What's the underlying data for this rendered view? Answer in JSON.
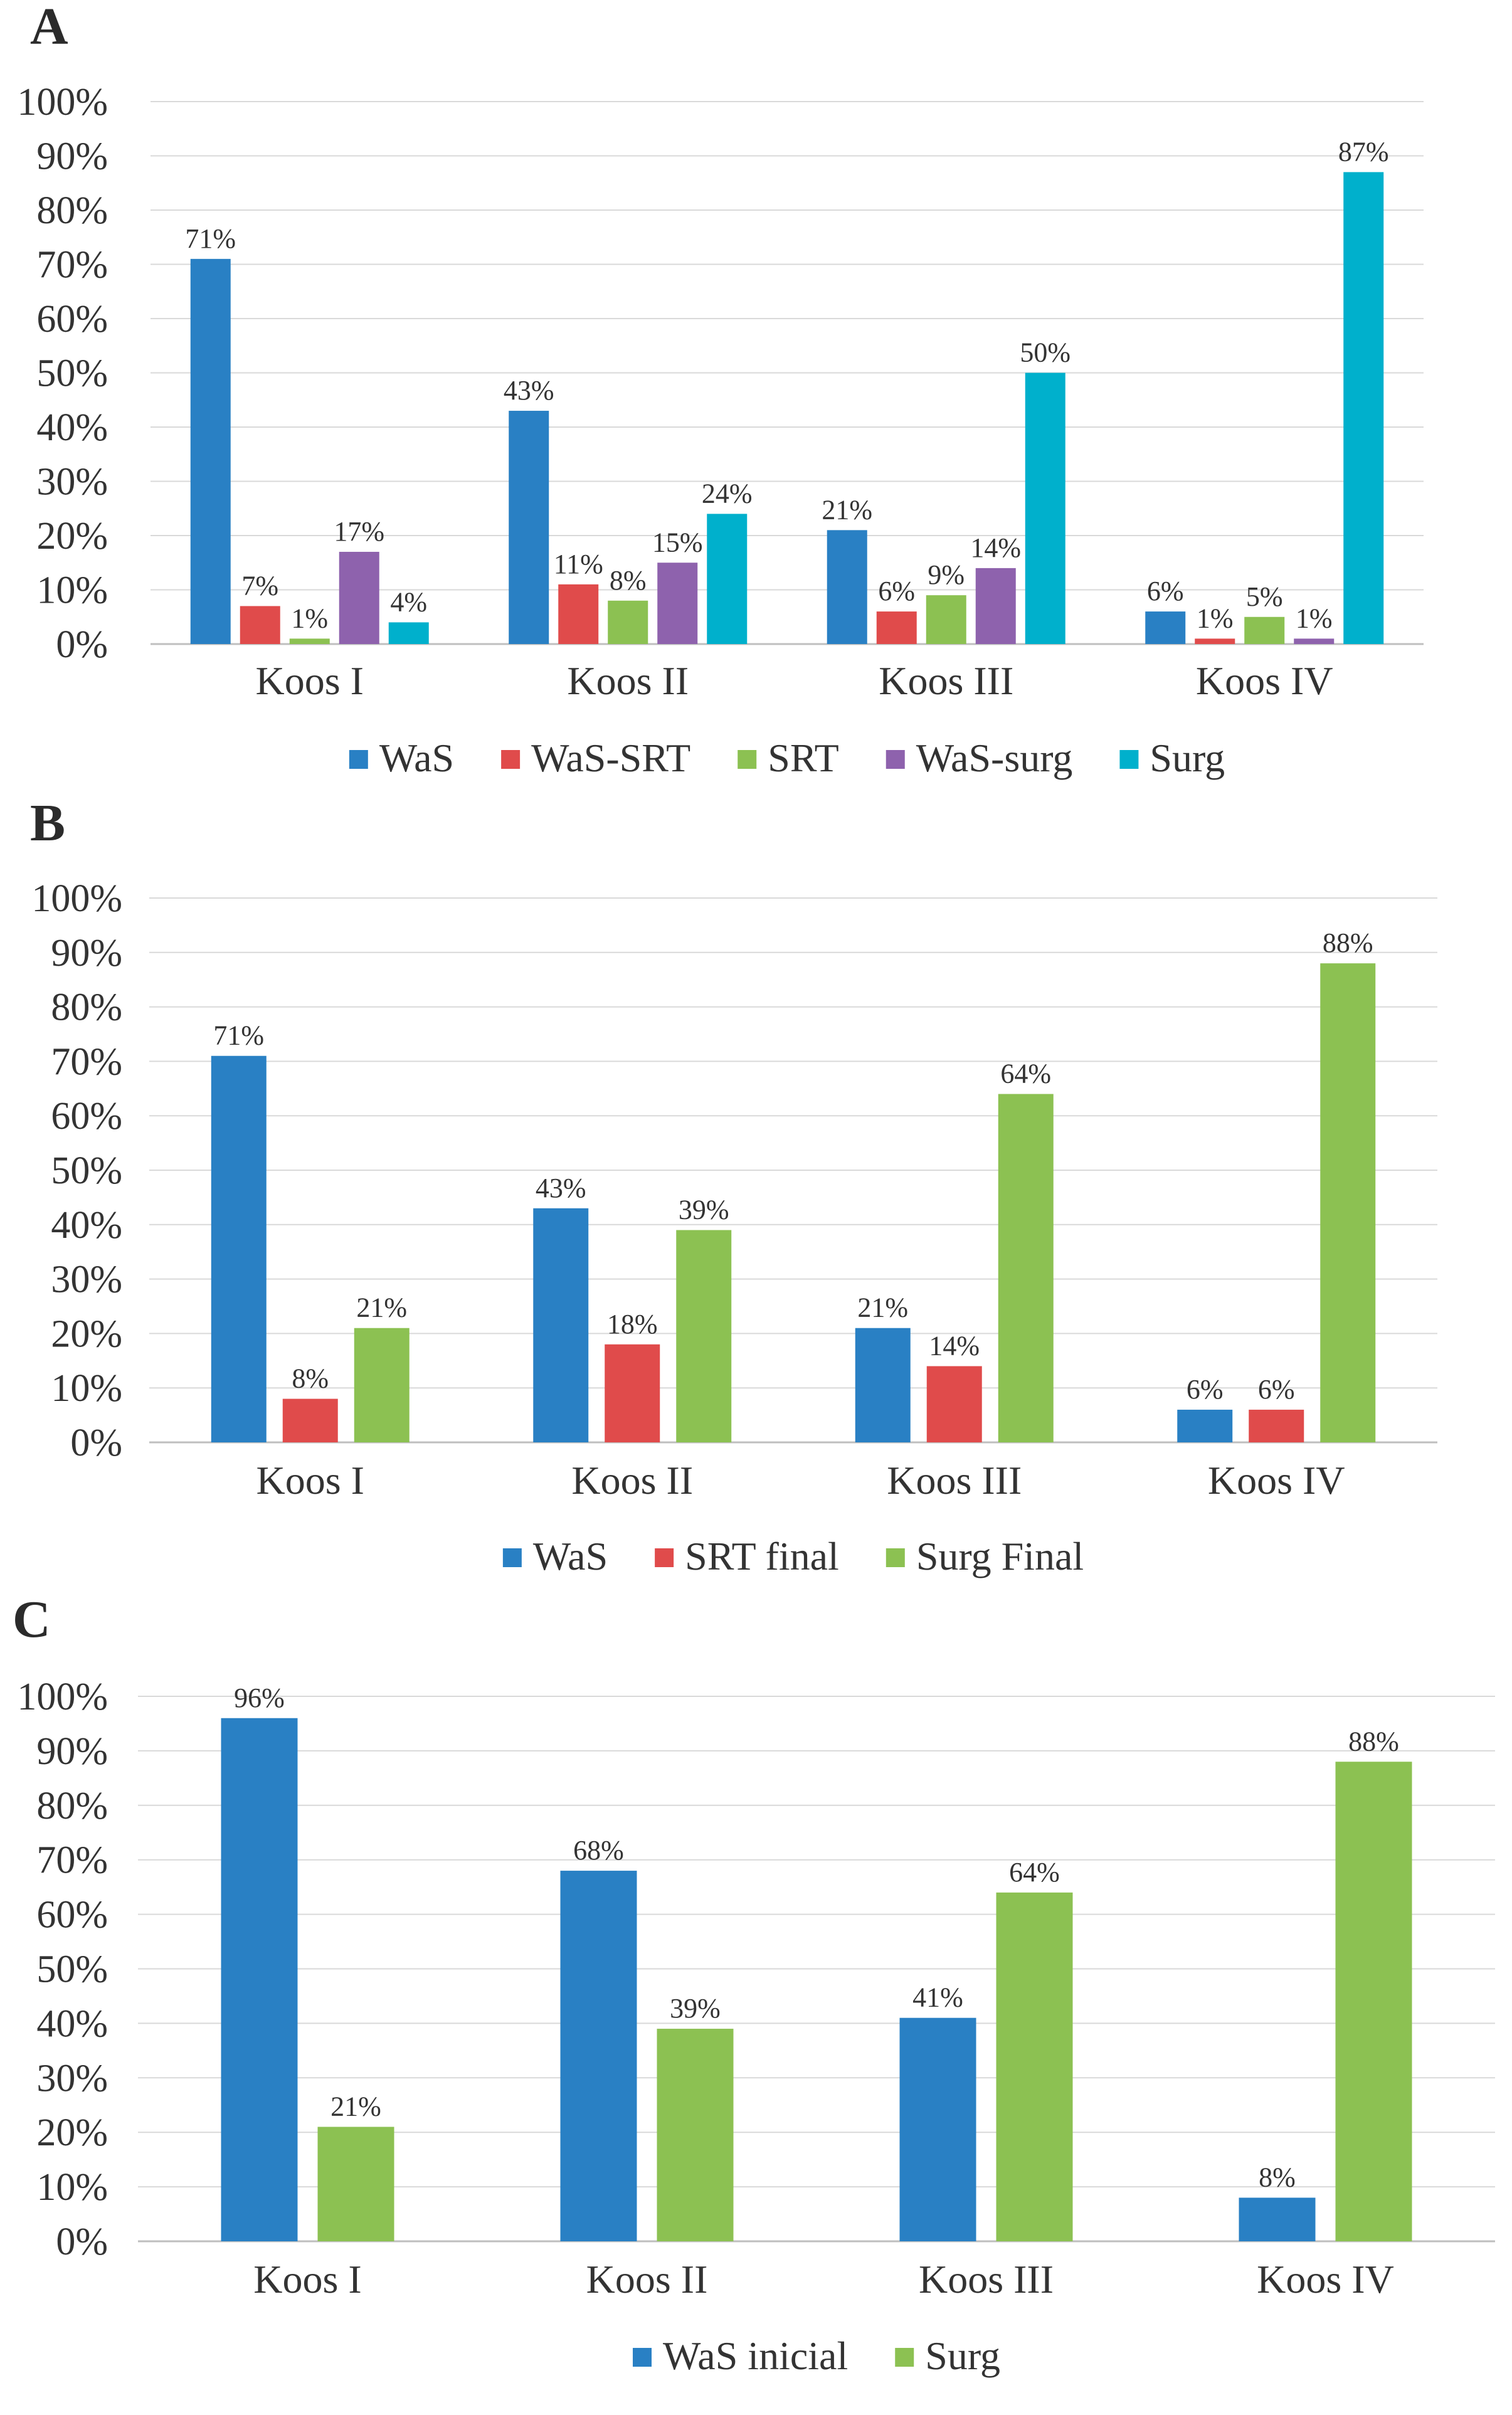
{
  "chart_data": [
    {
      "panel": "A",
      "type": "bar",
      "categories": [
        "Koos I",
        "Koos II",
        "Koos III",
        "Koos IV"
      ],
      "ylim": [
        0,
        100
      ],
      "yticks": [
        "0%",
        "10%",
        "20%",
        "30%",
        "40%",
        "50%",
        "60%",
        "70%",
        "80%",
        "90%",
        "100%"
      ],
      "grid": true,
      "legend_position": "bottom",
      "series": [
        {
          "name": "WaS",
          "color": "#2980C4",
          "values": [
            71,
            43,
            21,
            6
          ],
          "labels": [
            "71%",
            "43%",
            "21%",
            "6%"
          ]
        },
        {
          "name": "WaS-SRT",
          "color": "#E04B4B",
          "values": [
            7,
            11,
            6,
            1
          ],
          "labels": [
            "7%",
            "11%",
            "6%",
            "1%"
          ]
        },
        {
          "name": "SRT",
          "color": "#8CC152",
          "values": [
            1,
            8,
            9,
            5
          ],
          "labels": [
            "1%",
            "8%",
            "9%",
            "5%"
          ]
        },
        {
          "name": "WaS-surg",
          "color": "#8E62AD",
          "values": [
            17,
            15,
            14,
            1
          ],
          "labels": [
            "17%",
            "15%",
            "14%",
            "1%"
          ]
        },
        {
          "name": "Surg",
          "color": "#00B0CC",
          "values": [
            4,
            24,
            50,
            87
          ],
          "labels": [
            "4%",
            "24%",
            "50%",
            "87%"
          ]
        }
      ]
    },
    {
      "panel": "B",
      "type": "bar",
      "categories": [
        "Koos I",
        "Koos II",
        "Koos III",
        "Koos IV"
      ],
      "ylim": [
        0,
        100
      ],
      "yticks": [
        "0%",
        "10%",
        "20%",
        "30%",
        "40%",
        "50%",
        "60%",
        "70%",
        "80%",
        "90%",
        "100%"
      ],
      "grid": true,
      "legend_position": "bottom",
      "series": [
        {
          "name": "WaS",
          "color": "#2980C4",
          "values": [
            71,
            43,
            21,
            6
          ],
          "labels": [
            "71%",
            "43%",
            "21%",
            "6%"
          ]
        },
        {
          "name": "SRT final",
          "color": "#E04B4B",
          "values": [
            8,
            18,
            14,
            6
          ],
          "labels": [
            "8%",
            "18%",
            "14%",
            "6%"
          ]
        },
        {
          "name": "Surg Final",
          "color": "#8CC152",
          "values": [
            21,
            39,
            64,
            88
          ],
          "labels": [
            "21%",
            "39%",
            "64%",
            "88%"
          ]
        }
      ]
    },
    {
      "panel": "C",
      "type": "bar",
      "categories": [
        "Koos I",
        "Koos II",
        "Koos III",
        "Koos IV"
      ],
      "ylim": [
        0,
        100
      ],
      "yticks": [
        "0%",
        "10%",
        "20%",
        "30%",
        "40%",
        "50%",
        "60%",
        "70%",
        "80%",
        "90%",
        "100%"
      ],
      "grid": true,
      "legend_position": "bottom",
      "series": [
        {
          "name": "WaS inicial",
          "color": "#2980C4",
          "values": [
            96,
            68,
            41,
            8
          ],
          "labels": [
            "96%",
            "68%",
            "41%",
            "8%"
          ]
        },
        {
          "name": "Surg",
          "color": "#8CC152",
          "values": [
            21,
            39,
            64,
            88
          ],
          "labels": [
            "21%",
            "39%",
            "64%",
            "88%"
          ]
        }
      ]
    }
  ]
}
